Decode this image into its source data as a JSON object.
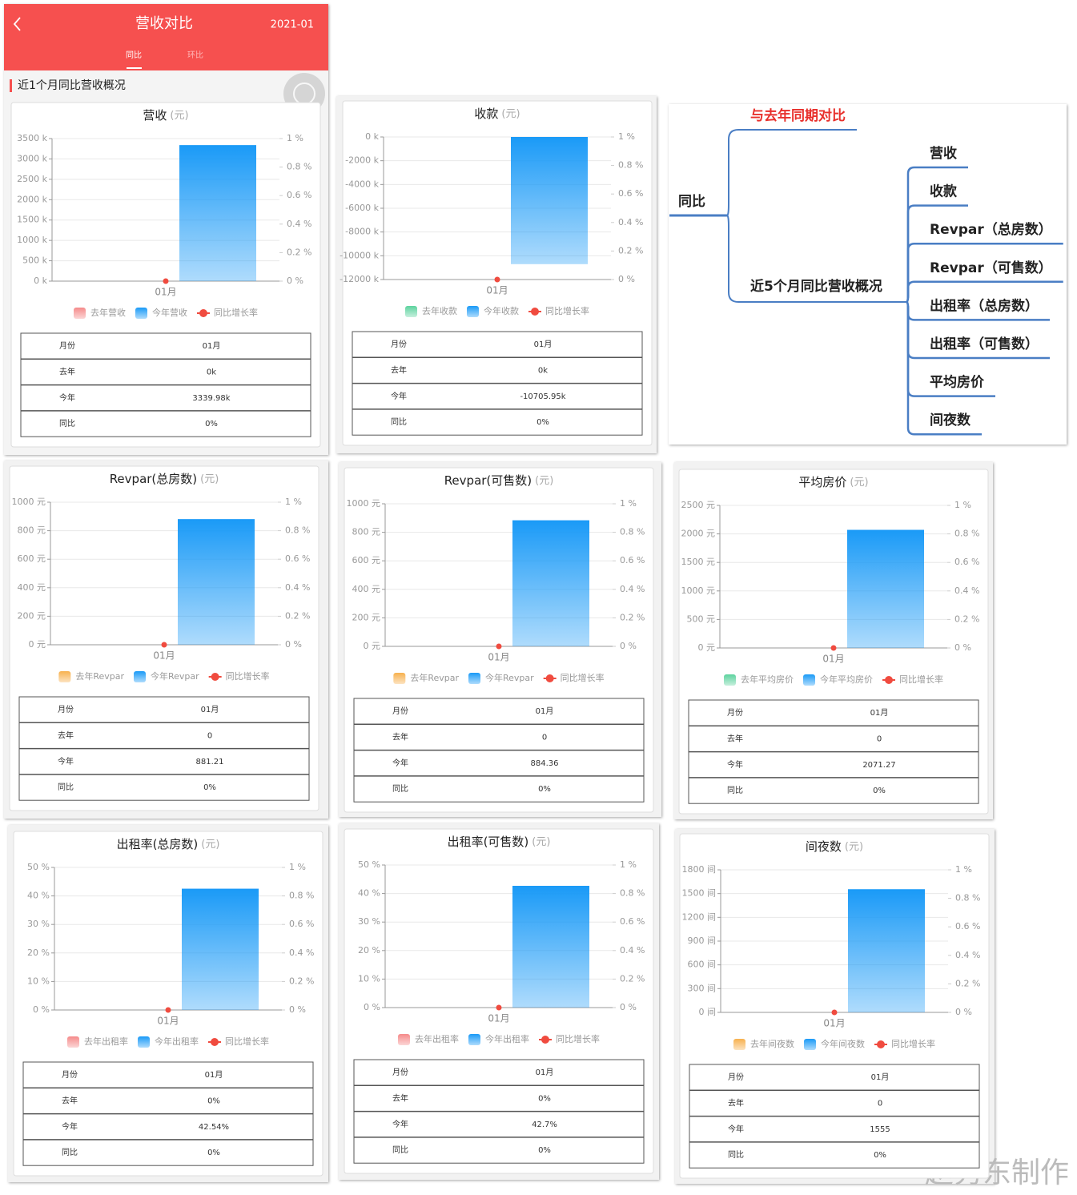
{
  "header": {
    "title": "营收对比",
    "date": "2021-01",
    "tabs": [
      "同比",
      "环比"
    ],
    "section": "近1个月同比营收概况"
  },
  "mindmap": {
    "root": "同比",
    "branches": [
      {
        "label": "与去年同期对比"
      },
      {
        "label": "近5个月同比营收概况",
        "children": [
          "营收",
          "收款",
          "Revpar（总房数）",
          "Revpar（可售数）",
          "出租率（总房数）",
          "出租率（可售数）",
          "平均房价",
          "间夜数"
        ]
      }
    ]
  },
  "watermark": "赵秀东制作",
  "chart_data": [
    {
      "type": "bar",
      "title": "营收",
      "unit": "(元)",
      "categories": [
        "01月"
      ],
      "series": [
        {
          "name": "去年营收",
          "color": "#f58a8a",
          "values": [
            0
          ]
        },
        {
          "name": "今年营收",
          "color": "#1a9af7",
          "values": [
            3339.98
          ]
        },
        {
          "name": "同比增长率",
          "color": "#f04b3f",
          "values": [
            0
          ],
          "axis": "y2"
        }
      ],
      "ylim": [
        0,
        3500
      ],
      "yticks": [
        {
          "value": 0,
          "label": "0 k"
        },
        {
          "value": 500,
          "label": "500 k"
        },
        {
          "value": 1000,
          "label": "1000 k"
        },
        {
          "value": 1500,
          "label": "1500 k"
        },
        {
          "value": 2000,
          "label": "2000 k"
        },
        {
          "value": 2500,
          "label": "2500 k"
        },
        {
          "value": 3000,
          "label": "3000 k"
        },
        {
          "value": 3500,
          "label": "3500 k"
        }
      ],
      "y2lim": [
        0,
        1
      ],
      "y2ticks": [
        {
          "value": 0,
          "label": "0 %"
        },
        {
          "value": 0.2,
          "label": "0.2 %"
        },
        {
          "value": 0.4,
          "label": "0.4 %"
        },
        {
          "value": 0.6,
          "label": "0.6 %"
        },
        {
          "value": 0.8,
          "label": "0.8 %"
        },
        {
          "value": 1,
          "label": "1 %"
        }
      ],
      "grid": true,
      "table": [
        [
          "月份",
          "01月"
        ],
        [
          "去年",
          "0k"
        ],
        [
          "今年",
          "3339.98k"
        ],
        [
          "同比",
          "0%"
        ]
      ]
    },
    {
      "type": "bar",
      "title": "收款",
      "unit": "(元)",
      "categories": [
        "01月"
      ],
      "series": [
        {
          "name": "去年收款",
          "color": "#5dd39e",
          "values": [
            0
          ]
        },
        {
          "name": "今年收款",
          "color": "#1a9af7",
          "values": [
            -10705.95
          ]
        },
        {
          "name": "同比增长率",
          "color": "#f04b3f",
          "values": [
            0
          ],
          "axis": "y2"
        }
      ],
      "ylim": [
        -12000,
        0
      ],
      "yticks": [
        {
          "value": 0,
          "label": "0 k"
        },
        {
          "value": -2000,
          "label": "-2000 k"
        },
        {
          "value": -4000,
          "label": "-4000 k"
        },
        {
          "value": -6000,
          "label": "-6000 k"
        },
        {
          "value": -8000,
          "label": "-8000 k"
        },
        {
          "value": -10000,
          "label": "-10000 k"
        },
        {
          "value": -12000,
          "label": "-12000 k"
        }
      ],
      "y2lim": [
        0,
        1
      ],
      "y2ticks": [
        {
          "value": 0,
          "label": "0 %"
        },
        {
          "value": 0.2,
          "label": "0.2 %"
        },
        {
          "value": 0.4,
          "label": "0.4 %"
        },
        {
          "value": 0.6,
          "label": "0.6 %"
        },
        {
          "value": 0.8,
          "label": "0.8 %"
        },
        {
          "value": 1,
          "label": "1 %"
        }
      ],
      "grid": true,
      "table": [
        [
          "月份",
          "01月"
        ],
        [
          "去年",
          "0k"
        ],
        [
          "今年",
          "-10705.95k"
        ],
        [
          "同比",
          "0%"
        ]
      ]
    },
    {
      "type": "bar",
      "title": "Revpar(总房数)",
      "unit": "(元)",
      "categories": [
        "01月"
      ],
      "series": [
        {
          "name": "去年Revpar",
          "color": "#f7b14e",
          "values": [
            0
          ]
        },
        {
          "name": "今年Revpar",
          "color": "#1a9af7",
          "values": [
            881.21
          ]
        },
        {
          "name": "同比增长率",
          "color": "#f04b3f",
          "values": [
            0
          ],
          "axis": "y2"
        }
      ],
      "ylim": [
        0,
        1000
      ],
      "yticks": [
        {
          "value": 0,
          "label": "0 元"
        },
        {
          "value": 200,
          "label": "200 元"
        },
        {
          "value": 400,
          "label": "400 元"
        },
        {
          "value": 600,
          "label": "600 元"
        },
        {
          "value": 800,
          "label": "800 元"
        },
        {
          "value": 1000,
          "label": "1000 元"
        }
      ],
      "y2lim": [
        0,
        1
      ],
      "y2ticks": [
        {
          "value": 0,
          "label": "0 %"
        },
        {
          "value": 0.2,
          "label": "0.2 %"
        },
        {
          "value": 0.4,
          "label": "0.4 %"
        },
        {
          "value": 0.6,
          "label": "0.6 %"
        },
        {
          "value": 0.8,
          "label": "0.8 %"
        },
        {
          "value": 1,
          "label": "1 %"
        }
      ],
      "grid": true,
      "table": [
        [
          "月份",
          "01月"
        ],
        [
          "去年",
          "0"
        ],
        [
          "今年",
          "881.21"
        ],
        [
          "同比",
          "0%"
        ]
      ]
    },
    {
      "type": "bar",
      "title": "Revpar(可售数)",
      "unit": "(元)",
      "categories": [
        "01月"
      ],
      "series": [
        {
          "name": "去年Revpar",
          "color": "#f7b14e",
          "values": [
            0
          ]
        },
        {
          "name": "今年Revpar",
          "color": "#1a9af7",
          "values": [
            884.36
          ]
        },
        {
          "name": "同比增长率",
          "color": "#f04b3f",
          "values": [
            0
          ],
          "axis": "y2"
        }
      ],
      "ylim": [
        0,
        1000
      ],
      "yticks": [
        {
          "value": 0,
          "label": "0 元"
        },
        {
          "value": 200,
          "label": "200 元"
        },
        {
          "value": 400,
          "label": "400 元"
        },
        {
          "value": 600,
          "label": "600 元"
        },
        {
          "value": 800,
          "label": "800 元"
        },
        {
          "value": 1000,
          "label": "1000 元"
        }
      ],
      "y2lim": [
        0,
        1
      ],
      "y2ticks": [
        {
          "value": 0,
          "label": "0 %"
        },
        {
          "value": 0.2,
          "label": "0.2 %"
        },
        {
          "value": 0.4,
          "label": "0.4 %"
        },
        {
          "value": 0.6,
          "label": "0.6 %"
        },
        {
          "value": 0.8,
          "label": "0.8 %"
        },
        {
          "value": 1,
          "label": "1 %"
        }
      ],
      "grid": true,
      "table": [
        [
          "月份",
          "01月"
        ],
        [
          "去年",
          "0"
        ],
        [
          "今年",
          "884.36"
        ],
        [
          "同比",
          "0%"
        ]
      ]
    },
    {
      "type": "bar",
      "title": "平均房价",
      "unit": "(元)",
      "categories": [
        "01月"
      ],
      "series": [
        {
          "name": "去年平均房价",
          "color": "#5dd39e",
          "values": [
            0
          ]
        },
        {
          "name": "今年平均房价",
          "color": "#1a9af7",
          "values": [
            2071.27
          ]
        },
        {
          "name": "同比增长率",
          "color": "#f04b3f",
          "values": [
            0
          ],
          "axis": "y2"
        }
      ],
      "ylim": [
        0,
        2500
      ],
      "yticks": [
        {
          "value": 0,
          "label": "0 元"
        },
        {
          "value": 500,
          "label": "500 元"
        },
        {
          "value": 1000,
          "label": "1000 元"
        },
        {
          "value": 1500,
          "label": "1500 元"
        },
        {
          "value": 2000,
          "label": "2000 元"
        },
        {
          "value": 2500,
          "label": "2500 元"
        }
      ],
      "y2lim": [
        0,
        1
      ],
      "y2ticks": [
        {
          "value": 0,
          "label": "0 %"
        },
        {
          "value": 0.2,
          "label": "0.2 %"
        },
        {
          "value": 0.4,
          "label": "0.4 %"
        },
        {
          "value": 0.6,
          "label": "0.6 %"
        },
        {
          "value": 0.8,
          "label": "0.8 %"
        },
        {
          "value": 1,
          "label": "1 %"
        }
      ],
      "grid": true,
      "table": [
        [
          "月份",
          "01月"
        ],
        [
          "去年",
          "0"
        ],
        [
          "今年",
          "2071.27"
        ],
        [
          "同比",
          "0%"
        ]
      ]
    },
    {
      "type": "bar",
      "title": "出租率(总房数)",
      "unit": "(元)",
      "categories": [
        "01月"
      ],
      "series": [
        {
          "name": "去年出租率",
          "color": "#f58a8a",
          "values": [
            0
          ]
        },
        {
          "name": "今年出租率",
          "color": "#1a9af7",
          "values": [
            42.54
          ]
        },
        {
          "name": "同比增长率",
          "color": "#f04b3f",
          "values": [
            0
          ],
          "axis": "y2"
        }
      ],
      "ylim": [
        0,
        50
      ],
      "yticks": [
        {
          "value": 0,
          "label": "0 %"
        },
        {
          "value": 10,
          "label": "10 %"
        },
        {
          "value": 20,
          "label": "20 %"
        },
        {
          "value": 30,
          "label": "30 %"
        },
        {
          "value": 40,
          "label": "40 %"
        },
        {
          "value": 50,
          "label": "50 %"
        }
      ],
      "y2lim": [
        0,
        1
      ],
      "y2ticks": [
        {
          "value": 0,
          "label": "0 %"
        },
        {
          "value": 0.2,
          "label": "0.2 %"
        },
        {
          "value": 0.4,
          "label": "0.4 %"
        },
        {
          "value": 0.6,
          "label": "0.6 %"
        },
        {
          "value": 0.8,
          "label": "0.8 %"
        },
        {
          "value": 1,
          "label": "1 %"
        }
      ],
      "grid": true,
      "table": [
        [
          "月份",
          "01月"
        ],
        [
          "去年",
          "0%"
        ],
        [
          "今年",
          "42.54%"
        ],
        [
          "同比",
          "0%"
        ]
      ]
    },
    {
      "type": "bar",
      "title": "出租率(可售数)",
      "unit": "(元)",
      "categories": [
        "01月"
      ],
      "series": [
        {
          "name": "去年出租率",
          "color": "#f58a8a",
          "values": [
            0
          ]
        },
        {
          "name": "今年出租率",
          "color": "#1a9af7",
          "values": [
            42.7
          ]
        },
        {
          "name": "同比增长率",
          "color": "#f04b3f",
          "values": [
            0
          ],
          "axis": "y2"
        }
      ],
      "ylim": [
        0,
        50
      ],
      "yticks": [
        {
          "value": 0,
          "label": "0 %"
        },
        {
          "value": 10,
          "label": "10 %"
        },
        {
          "value": 20,
          "label": "20 %"
        },
        {
          "value": 30,
          "label": "30 %"
        },
        {
          "value": 40,
          "label": "40 %"
        },
        {
          "value": 50,
          "label": "50 %"
        }
      ],
      "y2lim": [
        0,
        1
      ],
      "y2ticks": [
        {
          "value": 0,
          "label": "0 %"
        },
        {
          "value": 0.2,
          "label": "0.2 %"
        },
        {
          "value": 0.4,
          "label": "0.4 %"
        },
        {
          "value": 0.6,
          "label": "0.6 %"
        },
        {
          "value": 0.8,
          "label": "0.8 %"
        },
        {
          "value": 1,
          "label": "1 %"
        }
      ],
      "grid": true,
      "table": [
        [
          "月份",
          "01月"
        ],
        [
          "去年",
          "0%"
        ],
        [
          "今年",
          "42.7%"
        ],
        [
          "同比",
          "0%"
        ]
      ]
    },
    {
      "type": "bar",
      "title": "间夜数",
      "unit": "(元)",
      "categories": [
        "01月"
      ],
      "series": [
        {
          "name": "去年间夜数",
          "color": "#f7b14e",
          "values": [
            0
          ]
        },
        {
          "name": "今年间夜数",
          "color": "#1a9af7",
          "values": [
            1555
          ]
        },
        {
          "name": "同比增长率",
          "color": "#f04b3f",
          "values": [
            0
          ],
          "axis": "y2"
        }
      ],
      "ylim": [
        0,
        1800
      ],
      "yticks": [
        {
          "value": 0,
          "label": "0 间"
        },
        {
          "value": 300,
          "label": "300 间"
        },
        {
          "value": 600,
          "label": "600 间"
        },
        {
          "value": 900,
          "label": "900 间"
        },
        {
          "value": 1200,
          "label": "1200 间"
        },
        {
          "value": 1500,
          "label": "1500 间"
        },
        {
          "value": 1800,
          "label": "1800 间"
        }
      ],
      "y2lim": [
        0,
        1
      ],
      "y2ticks": [
        {
          "value": 0,
          "label": "0 %"
        },
        {
          "value": 0.2,
          "label": "0.2 %"
        },
        {
          "value": 0.4,
          "label": "0.4 %"
        },
        {
          "value": 0.6,
          "label": "0.6 %"
        },
        {
          "value": 0.8,
          "label": "0.8 %"
        },
        {
          "value": 1,
          "label": "1 %"
        }
      ],
      "grid": true,
      "table": [
        [
          "月份",
          "01月"
        ],
        [
          "去年",
          "0"
        ],
        [
          "今年",
          "1555"
        ],
        [
          "同比",
          "0%"
        ]
      ]
    }
  ]
}
